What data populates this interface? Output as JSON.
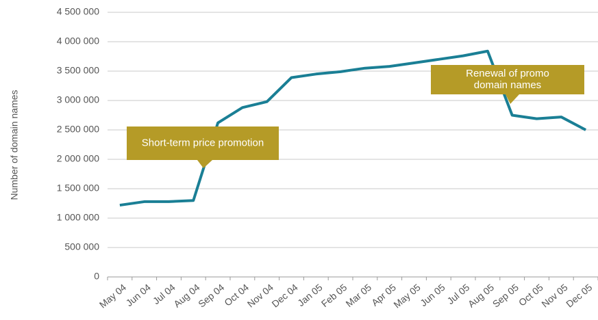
{
  "chart_data": {
    "type": "line",
    "y_label": "Number of domain names",
    "categories": [
      "May 04",
      "Jun 04",
      "Jul 04",
      "Aug 04",
      "Sep 04",
      "Oct 04",
      "Nov 04",
      "Dec 04",
      "Jan 05",
      "Feb 05",
      "Mar 05",
      "Apr 05",
      "May 05",
      "Jun 05",
      "Jul 05",
      "Aug 05",
      "Sep 05",
      "Oct 05",
      "Nov 05",
      "Dec 05"
    ],
    "series": [
      {
        "color": "#1a7f95",
        "values": [
          1220000,
          1280000,
          1280000,
          1300000,
          2620000,
          2880000,
          2980000,
          3390000,
          3450000,
          3490000,
          3550000,
          3580000,
          3640000,
          3700000,
          3760000,
          3840000,
          2750000,
          2690000,
          2720000,
          2500000
        ]
      }
    ],
    "ylim": [
      0,
      4500000
    ],
    "yticks": [
      0,
      {
        "value": 500000,
        "label": "500 000"
      },
      {
        "value": 1000000,
        "label": "1 000 000"
      },
      {
        "value": 1500000,
        "label": "1 500 000"
      },
      {
        "value": 2000000,
        "label": "2 000 000"
      },
      {
        "value": 2500000,
        "label": "2 500 000"
      },
      {
        "value": 3000000,
        "label": "3 000 000"
      },
      {
        "value": 3500000,
        "label": "3 500 000"
      },
      {
        "value": 4000000,
        "label": "4 000 000"
      },
      {
        "value": 4500000,
        "label": "4 500 000"
      }
    ],
    "grid": true,
    "annotations": [
      {
        "lines": [
          "Short-term price promotion"
        ],
        "color": "#b59b27"
      },
      {
        "lines": [
          "Renewal of promo",
          "domain names"
        ],
        "color": "#b59b27"
      }
    ]
  }
}
